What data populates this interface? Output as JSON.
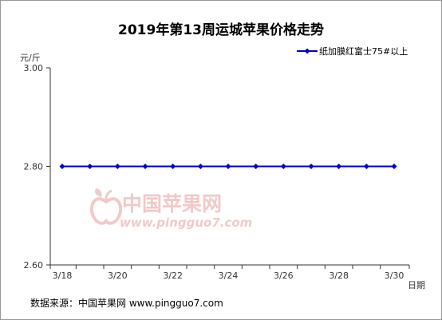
{
  "chart_data": {
    "type": "line",
    "title": "2019年第13周运城苹果价格走势",
    "ylabel": "元/斤",
    "xlabel": "日期",
    "ylim": [
      2.6,
      3.0
    ],
    "yticks": [
      "3.00",
      "2.80",
      "2.60"
    ],
    "categories": [
      "3/18",
      "3/19",
      "3/20",
      "3/21",
      "3/22",
      "3/23",
      "3/24",
      "3/25",
      "3/26",
      "3/27",
      "3/28",
      "3/29",
      "3/30"
    ],
    "tick_labels": [
      "3/18",
      "",
      "3/20",
      "",
      "3/22",
      "",
      "3/24",
      "",
      "3/26",
      "",
      "3/28",
      "",
      "3/30"
    ],
    "series": [
      {
        "name": "纸加膜红富士75#以上",
        "color": "#0000cc",
        "values": [
          2.8,
          2.8,
          2.8,
          2.8,
          2.8,
          2.8,
          2.8,
          2.8,
          2.8,
          2.8,
          2.8,
          2.8,
          2.8
        ]
      }
    ],
    "legend_position": "top-right",
    "grid": false
  },
  "watermark": {
    "text": "中国苹果网",
    "url": "www.pingguo7.com",
    "color": "#f2c9c9"
  },
  "footer": {
    "source": "数据来源：中国苹果网 www.pingguo7.com"
  }
}
